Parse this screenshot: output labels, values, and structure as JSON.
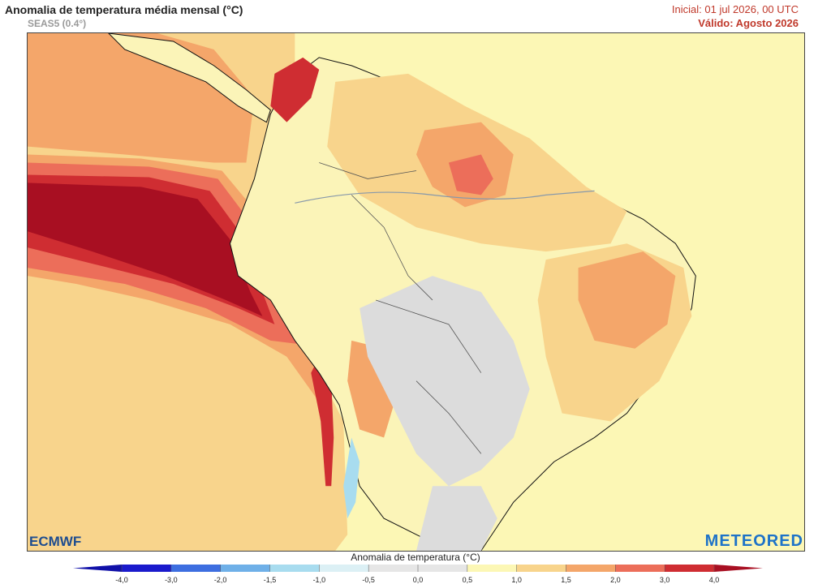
{
  "header": {
    "title": "Anomalia de temperatura média mensal (°C)",
    "model": "SEAS5 (0.4°)",
    "initial": "Inicial: 01 jul 2026, 00 UTC",
    "valid": "Válido: Agosto 2026"
  },
  "logos": {
    "left": "ECMWF",
    "right": "METEORED"
  },
  "colorbar": {
    "label": "Anomalia de temperatura (°C)",
    "ticks": [
      "-4,0",
      "-3,0",
      "-2,0",
      "-1,5",
      "-1,0",
      "-0,5",
      "0,0",
      "0,5",
      "1,0",
      "1,5",
      "2,0",
      "3,0",
      "4,0"
    ],
    "colors": [
      "#1a1acc",
      "#3d6ee0",
      "#6fb0e8",
      "#a8dcef",
      "#dcf0f5",
      "#e6e6e6",
      "#e6e6e6",
      "#fcf7b5",
      "#f8d48c",
      "#f4a66a",
      "#ec6e5a",
      "#cf2d32"
    ],
    "end_low": "#1010a8",
    "end_high": "#a80f22"
  },
  "map_colors": {
    "ocean_base": "#fcf7b5",
    "land_base": "#fbf4b8",
    "gray": "#dcdcdc",
    "light_orange": "#f8d48c",
    "orange": "#f4a66a",
    "salmon": "#ec6e5a",
    "red": "#cf2d32",
    "dark_red": "#a80f22",
    "blue": "#a8dcef",
    "coast": "#111111",
    "border": "#555555",
    "river": "#8899aa"
  }
}
